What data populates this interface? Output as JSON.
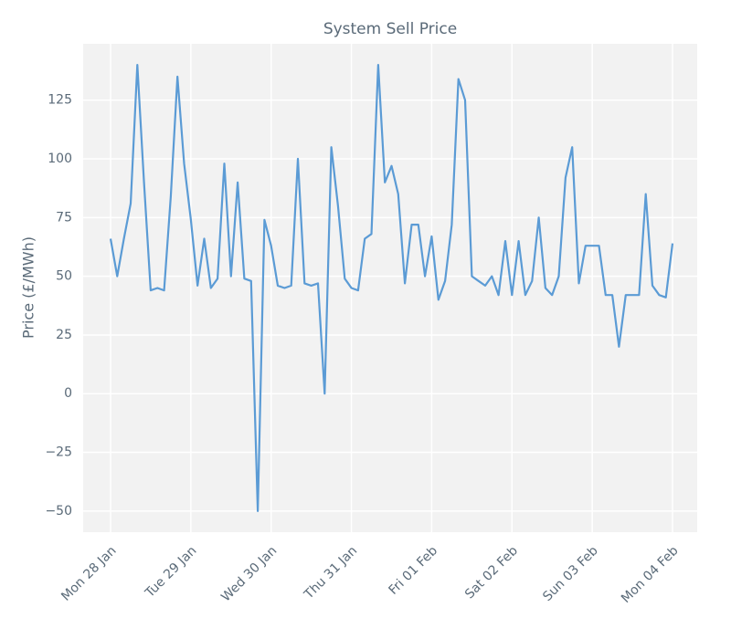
{
  "chart_data": {
    "type": "line",
    "title": "System Sell Price",
    "ylabel": "Price (£/MWh)",
    "categories": [
      "Mon 28 Jan",
      null,
      null,
      null,
      null,
      null,
      null,
      null,
      null,
      null,
      null,
      null,
      "Tue 29 Jan",
      null,
      null,
      null,
      null,
      null,
      null,
      null,
      null,
      null,
      null,
      null,
      "Wed 30 Jan",
      null,
      null,
      null,
      null,
      null,
      null,
      null,
      null,
      null,
      null,
      null,
      "Thu 31 Jan",
      null,
      null,
      null,
      null,
      null,
      null,
      null,
      null,
      null,
      null,
      null,
      "Fri 01 Feb",
      null,
      null,
      null,
      null,
      null,
      null,
      null,
      null,
      null,
      null,
      null,
      "Sat 02 Feb",
      null,
      null,
      null,
      null,
      null,
      null,
      null,
      null,
      null,
      null,
      null,
      "Sun 03 Feb",
      null,
      null,
      null,
      null,
      null,
      null,
      null,
      null,
      null,
      null,
      null,
      "Mon 04 Feb"
    ],
    "series": [
      {
        "name": "System Sell Price",
        "color": "#5b9bd5",
        "values": [
          66,
          50,
          66,
          81,
          140,
          90,
          44,
          45,
          44,
          84,
          135,
          98,
          74,
          46,
          66,
          45,
          49,
          98,
          50,
          90,
          49,
          48,
          -50,
          74,
          63,
          46,
          45,
          46,
          100,
          47,
          46,
          47,
          0,
          105,
          80,
          49,
          45,
          44,
          66,
          68,
          140,
          90,
          97,
          85,
          47,
          72,
          72,
          50,
          67,
          40,
          48,
          72,
          134,
          125,
          50,
          48,
          46,
          50,
          42,
          65,
          42,
          65,
          42,
          48,
          75,
          45,
          42,
          50,
          92,
          105,
          47,
          63,
          63,
          63,
          42,
          42,
          20,
          42,
          42,
          42,
          85,
          46,
          42,
          41,
          64
        ]
      }
    ],
    "ylim": [
      -59,
      149
    ],
    "yticks": [
      {
        "value": -50,
        "label": "−50"
      },
      {
        "value": -25,
        "label": "−25"
      },
      0,
      25,
      50,
      75,
      100,
      125
    ],
    "grid": true
  }
}
